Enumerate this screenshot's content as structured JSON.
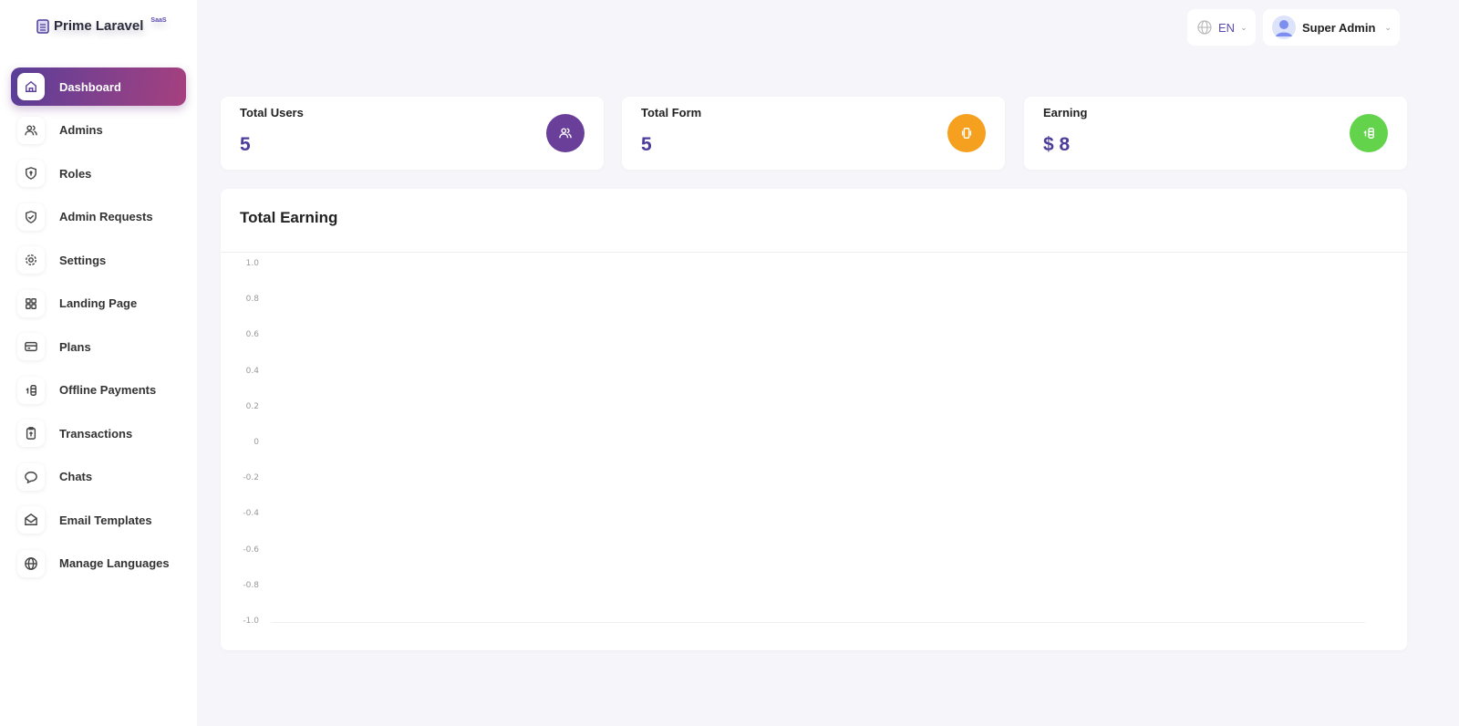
{
  "brand": {
    "name": "Prime Laravel",
    "badge": "SaaS"
  },
  "sidebar": {
    "items": [
      {
        "label": "Dashboard",
        "icon": "home-icon",
        "active": true
      },
      {
        "label": "Admins",
        "icon": "users-icon"
      },
      {
        "label": "Roles",
        "icon": "shield-lock-icon"
      },
      {
        "label": "Admin Requests",
        "icon": "shield-check-icon"
      },
      {
        "label": "Settings",
        "icon": "gear-icon"
      },
      {
        "label": "Landing Page",
        "icon": "grid-icon"
      },
      {
        "label": "Plans",
        "icon": "card-icon"
      },
      {
        "label": "Offline Payments",
        "icon": "coins-icon"
      },
      {
        "label": "Transactions",
        "icon": "clipboard-icon"
      },
      {
        "label": "Chats",
        "icon": "chat-icon"
      },
      {
        "label": "Email Templates",
        "icon": "mail-icon"
      },
      {
        "label": "Manage Languages",
        "icon": "globe-icon"
      }
    ]
  },
  "header": {
    "language": "EN",
    "user": "Super Admin"
  },
  "stats": [
    {
      "title": "Total Users",
      "value": "5",
      "color": "#6a3f9a"
    },
    {
      "title": "Total Form",
      "value": "5",
      "color": "#f5a01e"
    },
    {
      "title": "Earning",
      "value": "$ 8",
      "color": "#62d34a"
    }
  ],
  "chart_data": {
    "type": "line",
    "title": "Total Earning",
    "ylim": [
      -1,
      1
    ],
    "yticks": [
      "1.0",
      "0.8",
      "0.6",
      "0.4",
      "0.2",
      "0",
      "-0.2",
      "-0.4",
      "-0.6",
      "-0.8",
      "-1.0"
    ],
    "series": [],
    "grid": false
  }
}
